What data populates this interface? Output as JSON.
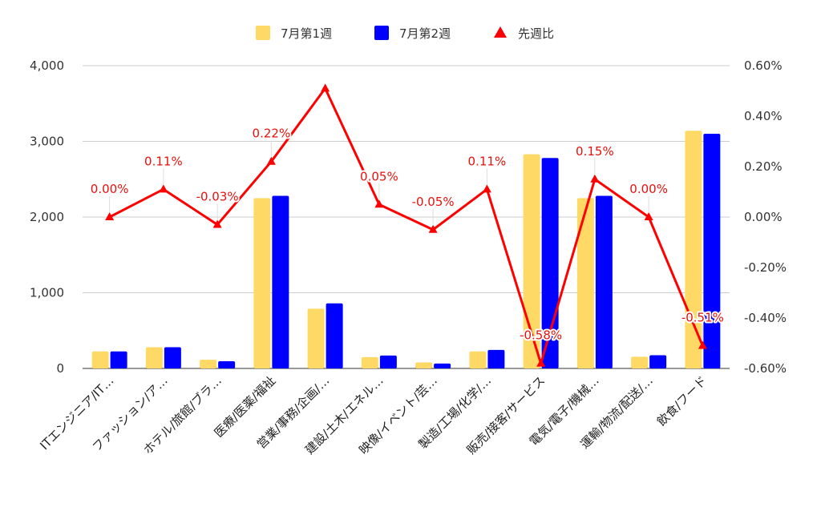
{
  "chart_data": {
    "type": "bar",
    "categories": [
      "ITエンジニア/IT…",
      "ファッション/ア…",
      "ホテル/旅館/ブラ…",
      "医療/医薬/福祉",
      "営業/事務/企画/…",
      "建設/土木/エネル…",
      "映像/イベント/芸…",
      "製造/工場/化学/…",
      "販売/接客/サービス",
      "電気/電子/機械…",
      "運輸/物流/配送/…",
      "飲食/フード"
    ],
    "series": [
      {
        "name": "7月第1週",
        "color": "#ffd966",
        "axis": "left",
        "values": [
          225,
          280,
          115,
          2250,
          790,
          150,
          80,
          225,
          2830,
          2250,
          155,
          3140
        ]
      },
      {
        "name": "7月第2週",
        "color": "#0000ff",
        "axis": "left",
        "values": [
          225,
          280,
          95,
          2280,
          860,
          170,
          65,
          245,
          2780,
          2280,
          175,
          3100
        ]
      }
    ],
    "line_series": {
      "name": "先週比",
      "color": "#ff0000",
      "axis": "right",
      "marker": "triangle",
      "values": [
        0.0,
        0.11,
        -0.03,
        0.22,
        0.51,
        0.05,
        -0.05,
        0.11,
        -0.58,
        0.15,
        0.0,
        -0.51
      ],
      "data_labels": [
        "0.00%",
        "0.11%",
        "-0.03%",
        "0.22%",
        "",
        "0.05%",
        "-0.05%",
        "0.11%",
        "-0.58%",
        "0.15%",
        "0.00%",
        "-0.51%"
      ]
    },
    "left_axis": {
      "ylim": [
        0,
        4000
      ],
      "ticks": [
        0,
        1000,
        2000,
        3000,
        4000
      ],
      "tick_labels": [
        "0",
        "1,000",
        "2,000",
        "3,000",
        "4,000"
      ]
    },
    "right_axis": {
      "ylim": [
        -0.6,
        0.6
      ],
      "ticks": [
        -0.6,
        -0.4,
        -0.2,
        0.0,
        0.2,
        0.4,
        0.6
      ],
      "tick_labels": [
        "-0.60%",
        "-0.40%",
        "-0.20%",
        "0.00%",
        "0.20%",
        "0.40%",
        "0.60%"
      ]
    },
    "grid": true,
    "legend_position": "top-center"
  }
}
